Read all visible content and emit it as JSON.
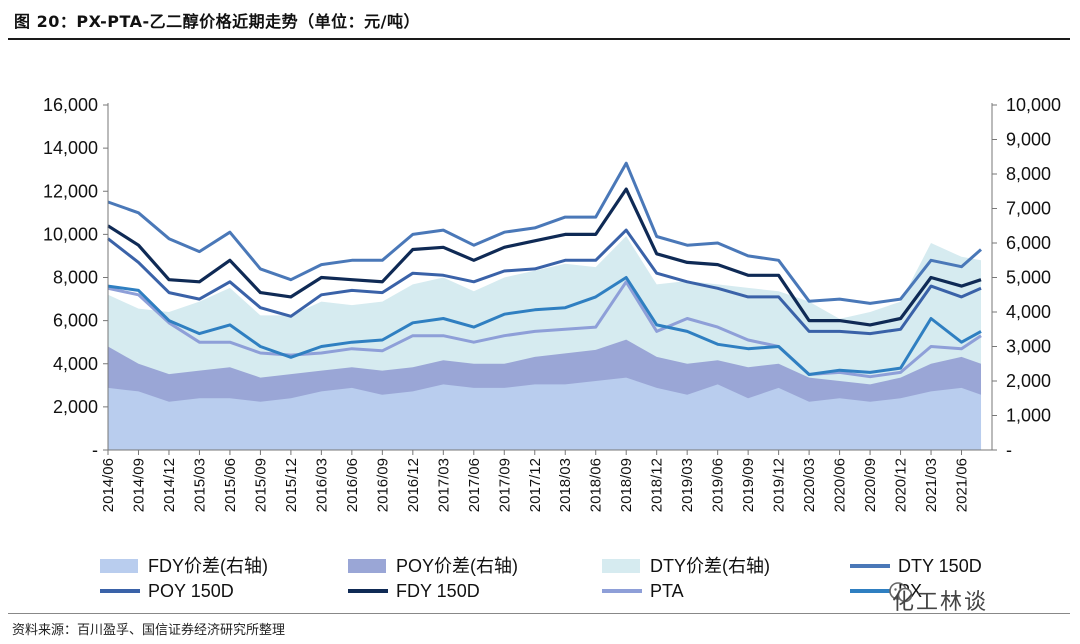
{
  "header": {
    "title": "图 20：PX-PTA-乙二醇价格近期走势（单位：元/吨）"
  },
  "footer": {
    "source": "资料来源：百川盈孚、国信证券经济研究所整理",
    "watermark": "化工林谈"
  },
  "colors": {
    "fdy_spread": "#b9cdee",
    "poy_spread": "#9aa6d6",
    "dty_spread": "#d6ebf0",
    "dty150d": "#4a78b8",
    "poy150d": "#3a62a8",
    "fdy150d": "#0f2a55",
    "pta": "#8e9fd8",
    "px": "#2f7fc1"
  },
  "chart_data": {
    "type": "line",
    "left_axis": {
      "ylim": [
        0,
        16000
      ],
      "ticks": [
        "-",
        "2,000",
        "4,000",
        "6,000",
        "8,000",
        "10,000",
        "12,000",
        "14,000",
        "16,000"
      ]
    },
    "right_axis": {
      "ylim": [
        0,
        10000
      ],
      "ticks": [
        "-",
        "1,000",
        "2,000",
        "3,000",
        "4,000",
        "5,000",
        "6,000",
        "7,000",
        "8,000",
        "9,000",
        "10,000"
      ]
    },
    "x_ticks": [
      "2014/06",
      "2014/09",
      "2014/12",
      "2015/03",
      "2015/06",
      "2015/09",
      "2015/12",
      "2016/03",
      "2016/06",
      "2016/09",
      "2016/12",
      "2017/03",
      "2017/06",
      "2017/09",
      "2017/12",
      "2018/03",
      "2018/06",
      "2018/09",
      "2018/12",
      "2019/03",
      "2019/06",
      "2019/09",
      "2019/12",
      "2020/03",
      "2020/06",
      "2020/09",
      "2020/12",
      "2021/03",
      "2021/06"
    ],
    "x": [
      2014.42,
      2014.67,
      2014.92,
      2015.17,
      2015.42,
      2015.67,
      2015.92,
      2016.17,
      2016.42,
      2016.67,
      2016.92,
      2017.17,
      2017.42,
      2017.67,
      2017.92,
      2018.17,
      2018.42,
      2018.67,
      2018.92,
      2019.17,
      2019.42,
      2019.67,
      2019.92,
      2020.17,
      2020.42,
      2020.67,
      2020.92,
      2021.17,
      2021.42,
      2021.58
    ],
    "x_range": [
      2014.42,
      2021.67
    ],
    "series": [
      {
        "name": "DTY 150D",
        "axis": "left",
        "color": "#4a78b8",
        "values": [
          11500,
          11000,
          9800,
          9200,
          10100,
          8400,
          7900,
          8600,
          8800,
          8800,
          10000,
          10200,
          9500,
          10100,
          10300,
          10800,
          10800,
          13300,
          9900,
          9500,
          9600,
          9000,
          8800,
          6900,
          7000,
          6800,
          7000,
          8800,
          8500,
          9300
        ]
      },
      {
        "name": "POY 150D",
        "axis": "left",
        "color": "#3a62a8",
        "values": [
          9800,
          8700,
          7300,
          7000,
          7800,
          6600,
          6200,
          7200,
          7400,
          7300,
          8200,
          8100,
          7800,
          8300,
          8400,
          8800,
          8800,
          10200,
          8200,
          7800,
          7500,
          7100,
          7100,
          5500,
          5500,
          5400,
          5600,
          7600,
          7100,
          7500
        ]
      },
      {
        "name": "FDY 150D",
        "axis": "left",
        "color": "#0f2a55",
        "values": [
          10400,
          9500,
          7900,
          7800,
          8800,
          7300,
          7100,
          8000,
          7900,
          7800,
          9300,
          9400,
          8800,
          9400,
          9700,
          10000,
          10000,
          12100,
          9100,
          8700,
          8600,
          8100,
          8100,
          6000,
          6000,
          5800,
          6100,
          8000,
          7600,
          7900
        ]
      },
      {
        "name": "PTA",
        "axis": "left",
        "color": "#8e9fd8",
        "values": [
          7500,
          7200,
          5900,
          5000,
          5000,
          4500,
          4400,
          4500,
          4700,
          4600,
          5300,
          5300,
          5000,
          5300,
          5500,
          5600,
          5700,
          7800,
          5500,
          6100,
          5700,
          5100,
          4800,
          3500,
          3600,
          3400,
          3600,
          4800,
          4700,
          5300
        ]
      },
      {
        "name": "PX",
        "axis": "left",
        "color": "#2f7fc1",
        "values": [
          7600,
          7400,
          6000,
          5400,
          5800,
          4800,
          4300,
          4800,
          5000,
          5100,
          5900,
          6100,
          5700,
          6300,
          6500,
          6600,
          7100,
          8000,
          5800,
          5500,
          4900,
          4700,
          4800,
          3500,
          3700,
          3600,
          3800,
          6100,
          5000,
          5500
        ]
      },
      {
        "name": "FDY价差(右轴)",
        "axis": "right",
        "color": "#b9cdee",
        "values": [
          1800,
          1700,
          1400,
          1500,
          1500,
          1400,
          1500,
          1700,
          1800,
          1600,
          1700,
          1900,
          1800,
          1800,
          1900,
          1900,
          2000,
          2100,
          1800,
          1600,
          1900,
          1500,
          1800,
          1400,
          1500,
          1400,
          1500,
          1700,
          1800,
          1600
        ]
      },
      {
        "name": "POY价差(右轴)",
        "axis": "right",
        "color": "#9aa6d6",
        "values": [
          3000,
          2500,
          2200,
          2300,
          2400,
          2100,
          2200,
          2300,
          2400,
          2300,
          2400,
          2600,
          2500,
          2500,
          2700,
          2800,
          2900,
          3200,
          2700,
          2500,
          2600,
          2400,
          2500,
          2100,
          2000,
          1900,
          2100,
          2500,
          2700,
          2500
        ]
      },
      {
        "name": "DTY价差(右轴)",
        "axis": "right",
        "color": "#d6ebf0",
        "values": [
          4500,
          4100,
          4000,
          4300,
          4700,
          3900,
          3900,
          4300,
          4200,
          4300,
          4800,
          5000,
          4600,
          5000,
          5200,
          5400,
          5300,
          6200,
          4800,
          4900,
          4800,
          4700,
          4600,
          4300,
          3800,
          4000,
          4300,
          6000,
          5600,
          5500
        ]
      }
    ],
    "legend": [
      "FDY价差(右轴)",
      "POY价差(右轴)",
      "DTY价差(右轴)",
      "DTY 150D",
      "POY 150D",
      "FDY 150D",
      "PTA",
      "PX"
    ],
    "legend_placement": "bottom"
  }
}
